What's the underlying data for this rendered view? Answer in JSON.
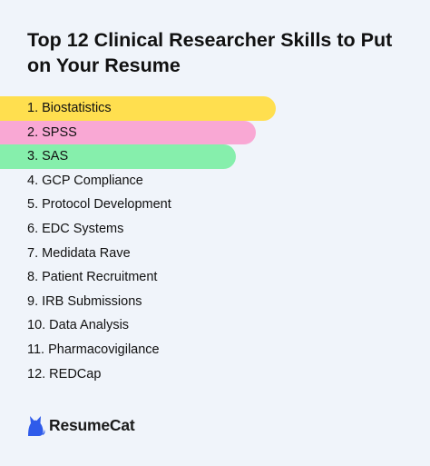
{
  "title": "Top 12 Clinical Researcher Skills to Put on Your Resume",
  "skills": [
    {
      "label": "1. Biostatistics",
      "color": "#ffdf4f"
    },
    {
      "label": "2. SPSS",
      "color": "#f9a8d4"
    },
    {
      "label": "3. SAS",
      "color": "#86efac"
    },
    {
      "label": "4. GCP Compliance"
    },
    {
      "label": "5. Protocol Development"
    },
    {
      "label": "6. EDC Systems"
    },
    {
      "label": "7. Medidata Rave"
    },
    {
      "label": "8. Patient Recruitment"
    },
    {
      "label": "9. IRB Submissions"
    },
    {
      "label": "10. Data Analysis"
    },
    {
      "label": "11. Pharmacovigilance"
    },
    {
      "label": "12. REDCap"
    }
  ],
  "brand": {
    "name": "ResumeCat",
    "icon": "cat-icon",
    "color": "#2f5bea"
  },
  "colors": {
    "background": "#f0f4fa",
    "text": "#111111"
  }
}
